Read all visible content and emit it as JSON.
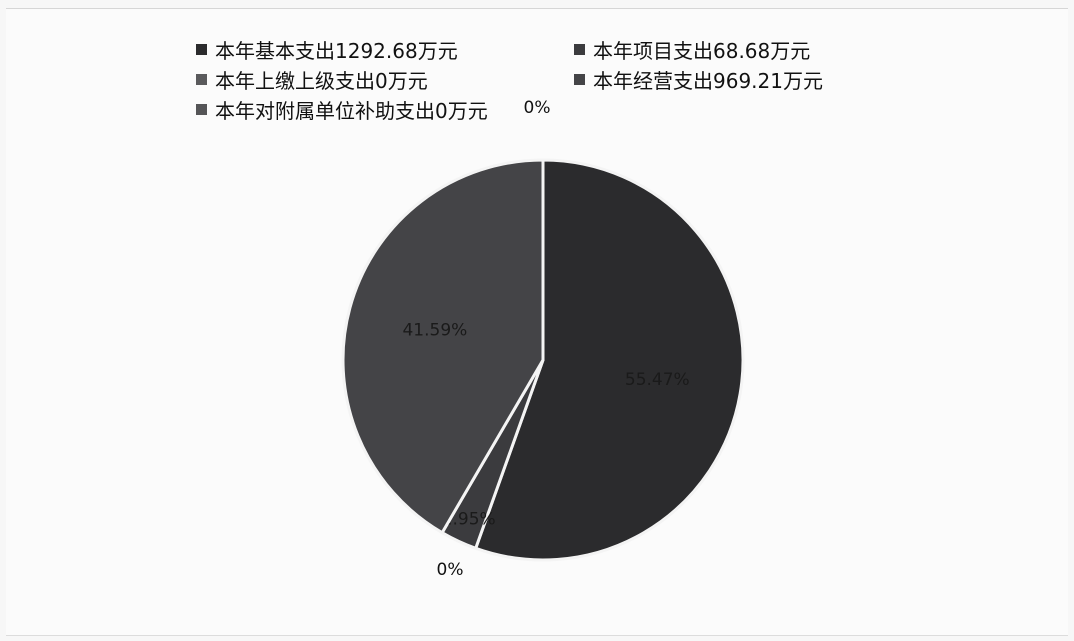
{
  "chart_data": {
    "type": "pie",
    "categories": [
      "本年基本支出1292.68万元",
      "本年项目支出68.68万元",
      "本年上缴上级支出0万元",
      "本年经营支出969.21万元",
      "本年对附属单位补助支出0万元"
    ],
    "values": [
      55.47,
      2.95,
      0,
      41.59,
      0
    ],
    "labels": [
      "55.47%",
      "2.95%",
      "0%",
      "41.59%",
      "0%"
    ],
    "colors": [
      "#2b2b2d",
      "#3b3b3e",
      "#5a5a5c",
      "#444447",
      "#555557"
    ],
    "legend_position": "top"
  }
}
